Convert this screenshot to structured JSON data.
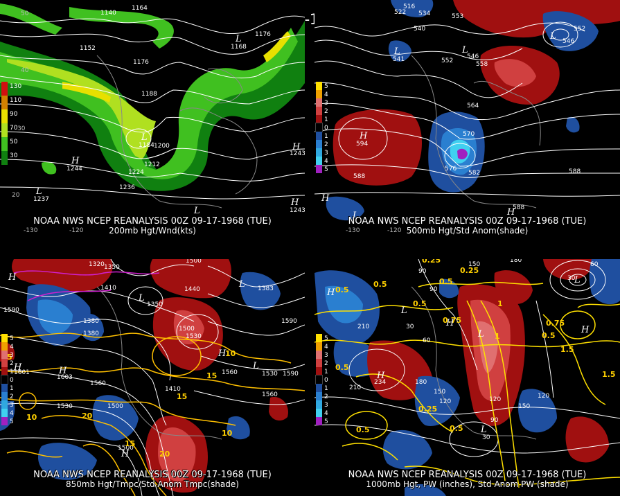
{
  "title": "00Z 09-17-1968 (TUE)",
  "panels": [
    {
      "line1": "NOAA NWS NCEP REANALYSIS 00Z 09-17-1968 (TUE)",
      "line2": "200mb Hgt/Wnd(kts)"
    },
    {
      "line1": "NOAA NWS NCEP REANALYSIS 00Z 09-17-1968 (TUE)",
      "line2": "500mb Hgt/Std Anom(shade)"
    },
    {
      "line1": "NOAA NWS NCEP REANALYSIS 00Z 09-17-1968 (TUE)",
      "line2": "850mb Hgt/Tmpc/Std Anom Tmpc(shade)"
    },
    {
      "line1": "NOAA NWS NCEP REANALYSIS 00Z 09-17-1968 (TUE)",
      "line2": "1000mb Hgt, PW (inches), Std Anom PW (shade)"
    }
  ],
  "legend_wind": [
    {
      "label": "130",
      "color": "#d01010"
    },
    {
      "label": "110",
      "color": "#d08000"
    },
    {
      "label": "90",
      "color": "#e8e000"
    },
    {
      "label": "70",
      "color": "#b0e020"
    },
    {
      "label": "50",
      "color": "#40c020"
    },
    {
      "label": "30",
      "color": "#108010"
    }
  ],
  "legend_anom": [
    {
      "label": "5",
      "color": "#ffe000"
    },
    {
      "label": "4",
      "color": "#f0a000"
    },
    {
      "label": "3",
      "color": "#e07070"
    },
    {
      "label": "2",
      "color": "#d04040"
    },
    {
      "label": "1",
      "color": "#a01010"
    },
    {
      "label": "0",
      "color": "#000000"
    },
    {
      "label": "1",
      "color": "#1f4f9f"
    },
    {
      "label": "2",
      "color": "#2a7fd0"
    },
    {
      "label": "3",
      "color": "#30a8e0"
    },
    {
      "label": "4",
      "color": "#40d0f0"
    },
    {
      "label": "5",
      "color": "#a020c0"
    }
  ],
  "p1_labels": [
    "1140",
    "1164",
    "1176",
    "1168",
    "1152",
    "1176",
    "1188",
    "1184",
    "1200",
    "1212",
    "1224",
    "1236",
    "1244",
    "1243",
    "1243",
    "1237"
  ],
  "p1_hl": [
    "L",
    "L",
    "H",
    "L",
    "H",
    "H",
    "L"
  ],
  "p1_ticks": [
    "-130",
    "-120",
    "20",
    "30",
    "40",
    "50"
  ],
  "p2_labels": [
    "516",
    "522",
    "534",
    "540",
    "553",
    "552",
    "546",
    "541",
    "546",
    "552",
    "558",
    "564",
    "570",
    "576",
    "582",
    "588",
    "588",
    "594",
    "588"
  ],
  "p2_hl": [
    "L",
    "L",
    "L",
    "H",
    "H",
    "H",
    "L"
  ],
  "p2_ticks": [
    "-130",
    "-120"
  ],
  "p3_labels": [
    "1320",
    "1350",
    "1500",
    "1440",
    "1410",
    "1380",
    "1350",
    "1590",
    "1601",
    "1603",
    "1560",
    "1530",
    "1500",
    "1500",
    "1410",
    "1530",
    "1560",
    "1590",
    "1380",
    "1500",
    "1530",
    "1560",
    "1590",
    "1383"
  ],
  "p3_yellow": [
    "5",
    "10",
    "15",
    "20",
    "10",
    "15",
    "20",
    "15",
    "10"
  ],
  "p3_hl": [
    "H",
    "H",
    "L",
    "H",
    "L",
    "H",
    "L",
    "H"
  ],
  "p4_labels": [
    "90",
    "150",
    "180",
    "210",
    "30",
    "60",
    "90",
    "120",
    "150",
    "210",
    "180",
    "150",
    "120",
    "30",
    "60",
    "30",
    "90",
    "120",
    "234"
  ],
  "p4_yellow": [
    "0.25",
    "0.5",
    "0.5",
    "0.5",
    "0.75",
    "1",
    "0.25",
    "0.5",
    "0.75",
    "1.5",
    "0.5",
    "0.5",
    "0.5",
    "0.25",
    "0.5",
    "1",
    "1.5"
  ],
  "p4_hl": [
    "H",
    "L",
    "H",
    "L",
    "H",
    "L",
    "H",
    "L"
  ]
}
